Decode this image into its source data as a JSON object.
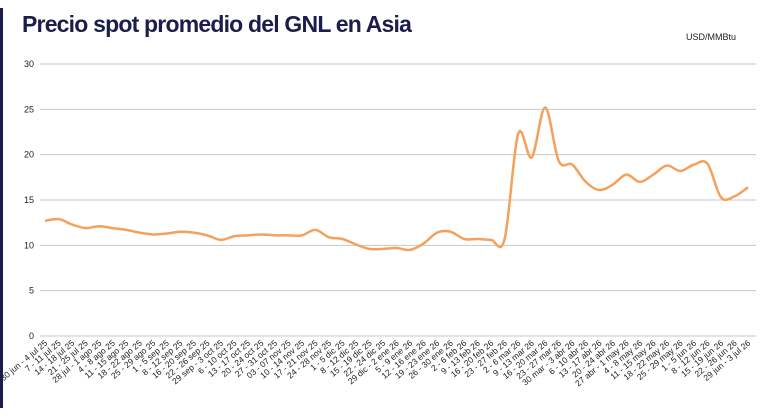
{
  "chart_data": {
    "type": "line",
    "title": "Precio spot promedio del GNL en Asia",
    "unit_label": "USD/MMBtu",
    "categories": [
      "30 jun - 4 jul 25",
      "7 - 11 jul 25",
      "14 - 18 jul 25",
      "21 - 25 jul 25",
      "28 jul - 1 ago 25",
      "4 - 8 ago 25",
      "11 - 15 ago 25",
      "18 - 22 ago 25",
      "25 - 29 ago 25",
      "1 - 5 sep 25",
      "8 - 12 sep 25",
      "16 - 20 sep 25",
      "22 - 26 sep 25",
      "29 sep - 3 oct 25",
      "6 - 10 oct 25",
      "13 - 17 oct 25",
      "20 - 24 oct 25",
      "27 - 31 oct 25",
      "03 - 07 nov 25",
      "10 - 14 nov 25",
      "17 - 21 nov 25",
      "24 - 28 nov 25",
      "1 - 5 dic 25",
      "8 - 12 dic 25",
      "15 - 19 dic 25",
      "22 - 24 dic 25",
      "29 dic - 2 ene 26",
      "5 - 9 ene 26",
      "12 - 16 ene 26",
      "19 - 23 ene 26",
      "26 - 30 ene 26",
      "2 - 6 feb 26",
      "9 - 13 feb 26",
      "16 - 20 feb 26",
      "23 - 27 feb 26",
      "2 - 6 mar 26",
      "9 - 13 mar 26",
      "16 - 20 mar 26",
      "23 - 27 mar 26",
      "30 mar - 3 abr 26",
      "6 - 10 abr 26",
      "13 - 17 abr 26",
      "20 - 24 abr 26",
      "27 abr - 1 may 26",
      "4 - 8 may 26",
      "11 - 15 may 26",
      "18 - 22 may 26",
      "25 - 29 may 26",
      "1 - 5 jun 26",
      "8 - 12 jun 26",
      "15 - 19 jun 26",
      "22 - 26 jun 26",
      "29 jun - 3 jul 26"
    ],
    "values": [
      12.7,
      12.9,
      12.3,
      11.9,
      12.1,
      11.9,
      11.7,
      11.4,
      11.2,
      11.3,
      11.5,
      11.4,
      11.1,
      10.6,
      11.0,
      11.1,
      11.2,
      11.1,
      11.1,
      11.1,
      11.7,
      10.9,
      10.7,
      10.1,
      9.6,
      9.6,
      9.7,
      9.5,
      10.2,
      11.4,
      11.5,
      10.7,
      10.7,
      10.6,
      10.7,
      22.3,
      19.7,
      25.2,
      19.3,
      18.9,
      17.0,
      16.1,
      16.7,
      17.8,
      17.0,
      17.8,
      18.8,
      18.2,
      18.9,
      19.0,
      15.3,
      15.4,
      16.4
    ],
    "color": "#f4a15d",
    "ylim": [
      0,
      30
    ],
    "yticks": [
      0,
      5,
      10,
      15,
      20,
      25,
      30
    ],
    "grid": true
  }
}
